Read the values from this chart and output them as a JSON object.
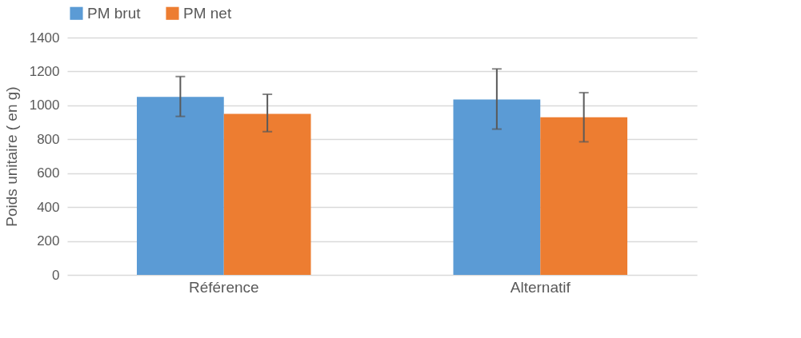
{
  "chart_data": {
    "type": "bar",
    "ylabel": "Poids unitaire ( en g)",
    "categories": [
      "Référence",
      "Alternatif"
    ],
    "series": [
      {
        "name": "PM brut",
        "color": "#5b9bd5",
        "values": [
          1050,
          1035
        ],
        "errors": [
          [
            935,
            1170
          ],
          [
            860,
            1215
          ]
        ]
      },
      {
        "name": "PM net",
        "color": "#ed7d31",
        "values": [
          950,
          930
        ],
        "errors": [
          [
            845,
            1065
          ],
          [
            785,
            1075
          ]
        ]
      }
    ],
    "ylim": [
      0,
      1400
    ],
    "yticks": [
      0,
      200,
      400,
      600,
      800,
      1000,
      1200,
      1400
    ],
    "grid": "y",
    "legend": "top"
  }
}
